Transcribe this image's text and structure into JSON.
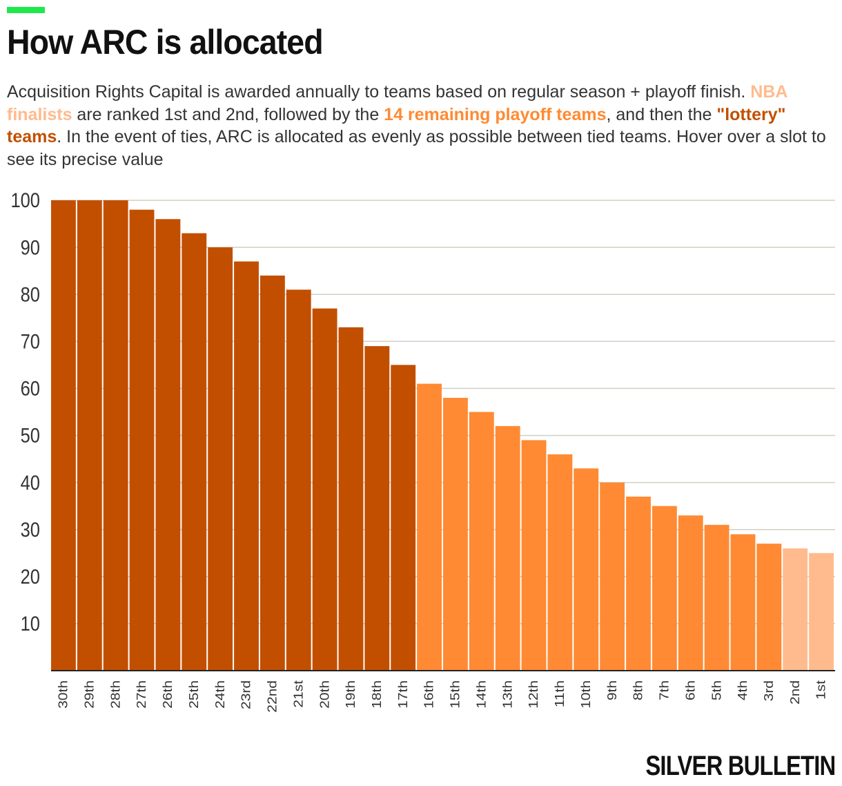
{
  "title": "How ARC is allocated",
  "subtitle": {
    "part1": "Acquisition Rights Capital is awarded annually to teams based on regular season + playoff finish. ",
    "finalists": "NBA finalists",
    "part2": " are ranked 1st and 2nd, followed by the ",
    "playoff": "14 remaining playoff teams",
    "part3": ", and then the ",
    "lottery": "\"lottery\" teams",
    "part4": ". In the event of ties, ARC is allocated as evenly as possible between tied teams. Hover over a slot to see its precise value"
  },
  "colors": {
    "lottery": "#c24f00",
    "playoff": "#ff8a33",
    "finalist": "#ffbb8e",
    "grid": "#cfcfc4",
    "axis": "#222222",
    "tick": "#333333"
  },
  "chart_data": {
    "type": "bar",
    "title": "How ARC is allocated",
    "xlabel": "",
    "ylabel": "",
    "ylim": [
      0,
      100
    ],
    "yticks": [
      10,
      20,
      30,
      40,
      50,
      60,
      70,
      80,
      90,
      100
    ],
    "grid": true,
    "categories": [
      "30th",
      "29th",
      "28th",
      "27th",
      "26th",
      "25th",
      "24th",
      "23rd",
      "22nd",
      "21st",
      "20th",
      "19th",
      "18th",
      "17th",
      "16th",
      "15th",
      "14th",
      "13th",
      "12th",
      "11th",
      "10th",
      "9th",
      "8th",
      "7th",
      "6th",
      "5th",
      "4th",
      "3rd",
      "2nd",
      "1st"
    ],
    "values": [
      100,
      100,
      100,
      98,
      96,
      93,
      90,
      87,
      84,
      81,
      77,
      73,
      69,
      65,
      61,
      58,
      55,
      52,
      49,
      46,
      43,
      40,
      37,
      35,
      33,
      31,
      29,
      27,
      26,
      25
    ],
    "groups": [
      "lottery",
      "lottery",
      "lottery",
      "lottery",
      "lottery",
      "lottery",
      "lottery",
      "lottery",
      "lottery",
      "lottery",
      "lottery",
      "lottery",
      "lottery",
      "lottery",
      "playoff",
      "playoff",
      "playoff",
      "playoff",
      "playoff",
      "playoff",
      "playoff",
      "playoff",
      "playoff",
      "playoff",
      "playoff",
      "playoff",
      "playoff",
      "playoff",
      "finalist",
      "finalist"
    ]
  },
  "brand": "SILVER BULLETIN"
}
